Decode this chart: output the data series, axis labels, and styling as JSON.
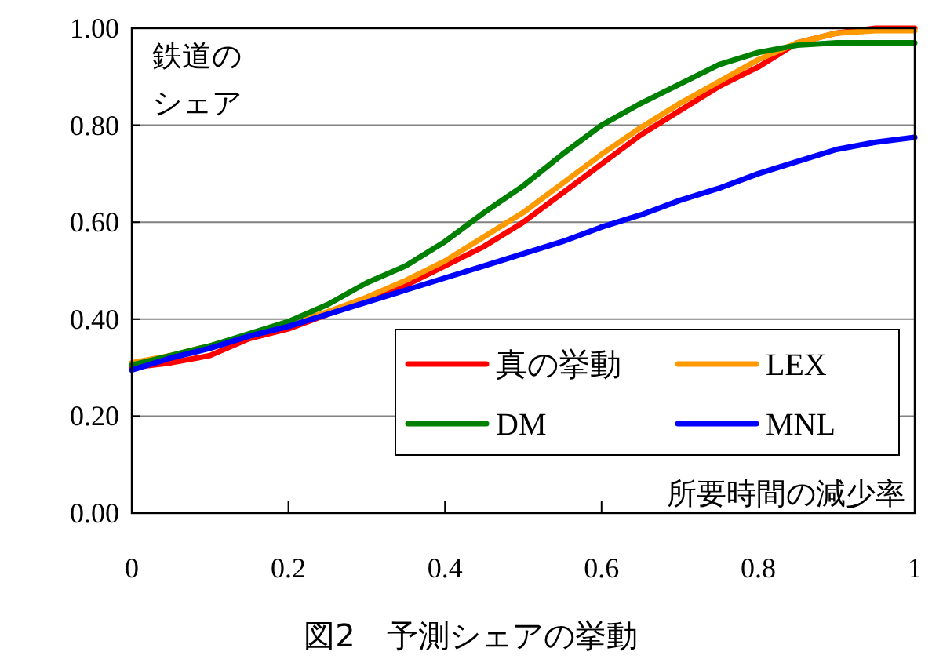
{
  "chart_data": {
    "type": "line",
    "title": "図2　予測シェアの挙動",
    "ylabel": "鉄道のシェア",
    "xlabel": "所要時間の減少率",
    "x": [
      0,
      0.05,
      0.1,
      0.15,
      0.2,
      0.25,
      0.3,
      0.35,
      0.4,
      0.45,
      0.5,
      0.55,
      0.6,
      0.65,
      0.7,
      0.75,
      0.8,
      0.85,
      0.9,
      0.95,
      1
    ],
    "series": [
      {
        "name": "真の挙動",
        "color": "#ff0000",
        "values": [
          0.3,
          0.31,
          0.325,
          0.36,
          0.38,
          0.41,
          0.44,
          0.47,
          0.51,
          0.55,
          0.6,
          0.66,
          0.72,
          0.78,
          0.83,
          0.88,
          0.92,
          0.97,
          0.99,
          1.0,
          1.0
        ]
      },
      {
        "name": "LEX",
        "color": "#ff9900",
        "values": [
          0.31,
          0.325,
          0.345,
          0.365,
          0.39,
          0.415,
          0.445,
          0.48,
          0.52,
          0.57,
          0.62,
          0.68,
          0.74,
          0.795,
          0.845,
          0.89,
          0.935,
          0.97,
          0.99,
          0.995,
          0.995
        ]
      },
      {
        "name": "DM",
        "color": "#008000",
        "values": [
          0.305,
          0.325,
          0.345,
          0.37,
          0.395,
          0.43,
          0.475,
          0.51,
          0.56,
          0.62,
          0.675,
          0.74,
          0.8,
          0.845,
          0.885,
          0.925,
          0.95,
          0.965,
          0.97,
          0.97,
          0.97
        ]
      },
      {
        "name": "MNL",
        "color": "#0000ff",
        "values": [
          0.295,
          0.32,
          0.34,
          0.365,
          0.385,
          0.41,
          0.435,
          0.46,
          0.485,
          0.51,
          0.535,
          0.56,
          0.59,
          0.615,
          0.645,
          0.67,
          0.7,
          0.725,
          0.75,
          0.765,
          0.775
        ]
      }
    ],
    "xlim": [
      0,
      1
    ],
    "ylim": [
      0,
      1
    ],
    "xticks": [
      0,
      0.2,
      0.4,
      0.6,
      0.8,
      1
    ],
    "yticks": [
      {
        "value": 0,
        "label": "0.00"
      },
      {
        "value": 0.2,
        "label": "0.20"
      },
      {
        "value": 0.4,
        "label": "0.40"
      },
      {
        "value": 0.6,
        "label": "0.60"
      },
      {
        "value": 0.8,
        "label": "0.80"
      },
      {
        "value": 1,
        "label": "1.00"
      }
    ],
    "grid": "y",
    "legend": "bottom right",
    "marker": "none",
    "line_style": "solid"
  }
}
